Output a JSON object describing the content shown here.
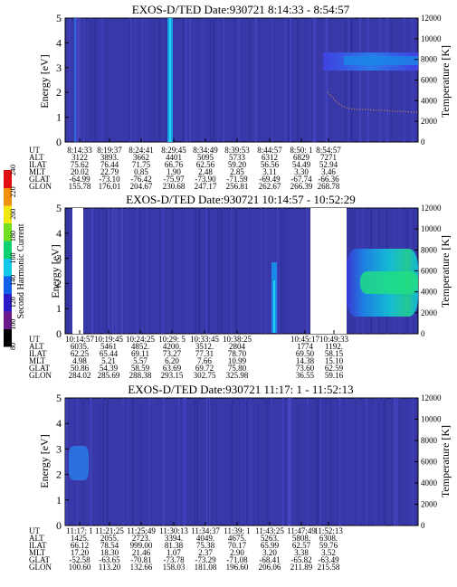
{
  "colorbar": {
    "label": "Second Harmonic Current",
    "ticks": [
      80,
      100,
      120,
      140,
      160,
      180,
      200,
      220,
      240
    ],
    "colors": [
      "#000000",
      "#6a1a8a",
      "#2a1ac8",
      "#1060e8",
      "#10c8e8",
      "#10d070",
      "#70e020",
      "#f0e810",
      "#f09010",
      "#e01010"
    ]
  },
  "chart_data": [
    {
      "type": "heatmap",
      "title": "EXOS-D/TED   Date:930721   8:14:33 - 8:54:57",
      "ylabel": "Energy [eV]",
      "y2label": "Temperature [K]",
      "ylim": [
        0,
        5
      ],
      "y2lim": [
        0,
        12000
      ],
      "yticks": [
        0,
        1,
        2,
        3,
        4,
        5
      ],
      "y2ticks": [
        0,
        2000,
        4000,
        6000,
        8000,
        10000,
        12000
      ],
      "row_labels": [
        "UT",
        "ALT",
        "ILAT",
        "MLT",
        "GLAT",
        "GLON"
      ],
      "columns": [
        [
          "8:14:33",
          "3122",
          "75.62",
          "20.02",
          "-64.99",
          "155.78"
        ],
        [
          "8:19:37",
          "3893.",
          "76.44",
          "22.79",
          "-73.10",
          "176.01"
        ],
        [
          "8:24:41",
          "3662",
          "71.75",
          "0.85",
          "-76.42",
          "204.67"
        ],
        [
          "8:29:45",
          "4401",
          "66.76",
          "1.90",
          "-75.97",
          "230.68"
        ],
        [
          "8:34:49",
          "5095",
          "62.56",
          "2.48",
          "-73.90",
          "247.17"
        ],
        [
          "8:39:53",
          "5733",
          "59.20",
          "2.85",
          "-71.59",
          "256.81"
        ],
        [
          "8:44:57",
          "6312",
          "56.56",
          "3.11",
          "-69.49",
          "262.67"
        ],
        [
          "8:50: 1",
          "6829",
          "54.49",
          "3.30",
          "-67.74",
          "266.39"
        ],
        [
          "8:54:57",
          "7271",
          "52.94",
          "3.46",
          "-66.36",
          "268.78"
        ]
      ]
    },
    {
      "type": "heatmap",
      "title": "EXOS-D/TED   Date:930721   10:14:57 - 10:52:29",
      "ylabel": "Energy [eV]",
      "y2label": "Temperature [K]",
      "ylim": [
        0,
        5
      ],
      "y2lim": [
        0,
        12000
      ],
      "yticks": [
        0,
        1,
        2,
        3,
        4,
        5
      ],
      "y2ticks": [
        0,
        2000,
        4000,
        6000,
        8000,
        10000,
        12000
      ],
      "row_labels": [
        "UT",
        "ALT",
        "ILAT",
        "MLT",
        "GLAT",
        "GLON"
      ],
      "columns": [
        [
          "10:14:57",
          "6035.",
          "62.25",
          "4.98",
          "50.86",
          "284.02"
        ],
        [
          "10:19:45",
          "5461",
          "65.44",
          "5.21",
          "54.39",
          "285.69"
        ],
        [
          "10:24:25",
          "4852.",
          "69.11",
          "5.57",
          "58.59",
          "288.38"
        ],
        [
          "10:29: 5",
          "4200.",
          "73.27",
          "6.20",
          "63.69",
          "293.15"
        ],
        [
          "10:33:45",
          "3512.",
          "77.31",
          "7.66",
          "69.72",
          "302.75"
        ],
        [
          "10:38:25",
          "2804",
          "78.70",
          "10.99",
          "75.80",
          "325.98"
        ],
        [
          "10:45:17",
          "1774",
          "69.50",
          "14.38",
          "73.60",
          "36.55"
        ],
        [
          "10:49:33",
          "1192.",
          "58.15",
          "15.10",
          "62.59",
          "59.16"
        ]
      ]
    },
    {
      "type": "heatmap",
      "title": "EXOS-D/TED   Date:930721   11:17: 1 - 11:52:13",
      "ylabel": "Energy [eV]",
      "y2label": "Temperature [K]",
      "ylim": [
        0,
        5
      ],
      "y2lim": [
        0,
        12000
      ],
      "yticks": [
        0,
        1,
        2,
        3,
        4,
        5
      ],
      "y2ticks": [
        0,
        2000,
        4000,
        6000,
        8000,
        10000,
        12000
      ],
      "row_labels": [
        "UT",
        "ALT",
        "ILAT",
        "MLT",
        "GLAT",
        "GLON"
      ],
      "columns": [
        [
          "11:17: 1",
          "1425.",
          "66.12",
          "17.20",
          "-52.58",
          "100.60"
        ],
        [
          "11:21:25",
          "2055.",
          "78.54",
          "18.30",
          "-63.65",
          "113.20"
        ],
        [
          "11:25:49",
          "2723.",
          "999.00",
          "21.46",
          "-70.81",
          "132.66"
        ],
        [
          "11:30:13",
          "3394.",
          "81.38",
          "1.07",
          "-73.78",
          "158.03"
        ],
        [
          "11:34:37",
          "4049.",
          "75.38",
          "2.37",
          "-73.29",
          "181.08"
        ],
        [
          "11:39: 1",
          "4675.",
          "70.17",
          "2.90",
          "-71.08",
          "196.60"
        ],
        [
          "11:43:25",
          "5263.",
          "65.99",
          "3.20",
          "-68.41",
          "206.06"
        ],
        [
          "11:47:49",
          "5808.",
          "62.57",
          "3.38",
          "-65.82",
          "211.89"
        ],
        [
          "11:52:13",
          "6308.",
          "59.76",
          "3.52",
          "-63.49",
          "215.58"
        ]
      ]
    }
  ]
}
